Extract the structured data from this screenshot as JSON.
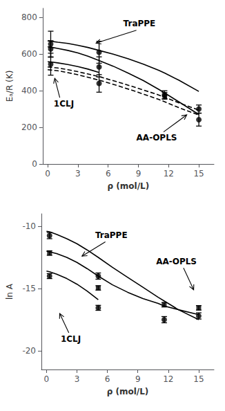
{
  "chart_data": [
    {
      "type": "scatter",
      "xlabel": "ρ (mol/L)",
      "ylabel": "Eₐ/R (K)",
      "xlim": [
        -0.5,
        16.5
      ],
      "ylim": [
        0,
        850
      ],
      "xticks": [
        0,
        3,
        6,
        9,
        12,
        15
      ],
      "yticks": [
        0,
        200,
        400,
        600,
        800
      ],
      "grid": false,
      "series": [
        {
          "type": "line",
          "line_style": "solid",
          "color": "black",
          "x": [
            0.0,
            0.3,
            1.0,
            2.0,
            3.0,
            4.0,
            5.1,
            6.5,
            8.0,
            9.5,
            11.0,
            11.6,
            13.0,
            15.0
          ],
          "values": [
            672,
            670,
            665,
            658,
            648,
            636,
            620,
            600,
            574,
            545,
            512,
            497,
            458,
            396
          ]
        },
        {
          "type": "line",
          "line_style": "solid",
          "color": "black",
          "x": [
            0.0,
            0.3,
            1.0,
            2.0,
            3.0,
            4.0,
            5.1,
            6.5,
            8.0,
            9.5,
            11.0,
            11.6,
            13.0,
            15.0
          ],
          "values": [
            640,
            638,
            631,
            620,
            606,
            588,
            565,
            534,
            496,
            455,
            408,
            388,
            340,
            270
          ]
        },
        {
          "type": "line",
          "line_style": "solid",
          "color": "black",
          "x": [
            0.0,
            0.3,
            1.0,
            2.0,
            3.0,
            4.0,
            5.1
          ],
          "values": [
            558,
            557,
            552,
            543,
            532,
            518,
            500
          ]
        },
        {
          "type": "line",
          "line_style": "dashed",
          "color": "black",
          "x": [
            0.0,
            1.0,
            2.0,
            3.0,
            5.1,
            7.0,
            9.0,
            11.0,
            11.6,
            13.0,
            15.0
          ],
          "values": [
            530,
            524,
            515,
            504,
            477,
            447,
            413,
            377,
            365,
            334,
            294
          ]
        },
        {
          "type": "line",
          "line_style": "dashed",
          "color": "black",
          "x": [
            0.0,
            1.0,
            2.0,
            3.0,
            5.1,
            7.0,
            9.0,
            11.0,
            11.6,
            13.0,
            15.0
          ],
          "values": [
            515,
            509,
            499,
            487,
            458,
            427,
            391,
            353,
            340,
            308,
            267
          ]
        },
        {
          "type": "scatter",
          "marker": "circle",
          "color": "black",
          "x": [
            0.3,
            5.1,
            11.6,
            15.0
          ],
          "values": [
            655,
            610,
            378,
            300
          ],
          "yerr": [
            70,
            60,
            22,
            22
          ]
        },
        {
          "type": "scatter",
          "marker": "circle",
          "color": "black",
          "x": [
            0.3,
            5.1,
            11.6,
            15.0
          ],
          "values": [
            628,
            530,
            372,
            242
          ],
          "yerr": [
            45,
            55,
            18,
            35
          ]
        },
        {
          "type": "scatter",
          "marker": "circle",
          "color": "black",
          "x": [
            0.3,
            5.1
          ],
          "values": [
            545,
            440
          ],
          "yerr": [
            60,
            48
          ]
        }
      ],
      "annotations": [
        {
          "text": "TraPPE",
          "x": 7.5,
          "y": 745,
          "arrow_from": [
            8.8,
            730
          ],
          "arrow_to": [
            4.8,
            660
          ]
        },
        {
          "text": "1CLJ",
          "x": 0.6,
          "y": 350,
          "arrow_from": [
            1.2,
            362
          ],
          "arrow_to": [
            0.7,
            468
          ]
        },
        {
          "text": "AA-OPLS",
          "x": 8.8,
          "y": 168,
          "arrow_from": [
            11.5,
            175
          ],
          "arrow_to": [
            13.8,
            268
          ]
        }
      ]
    },
    {
      "type": "scatter",
      "xlabel": "ρ (mol/L)",
      "ylabel": "ln A",
      "xlim": [
        -0.5,
        16.5
      ],
      "ylim": [
        -21.5,
        -9.0
      ],
      "xticks": [
        0,
        3,
        6,
        9,
        12,
        15
      ],
      "yticks": [
        -20,
        -15,
        -10
      ],
      "grid": false,
      "series": [
        {
          "type": "line",
          "line_style": "solid",
          "color": "black",
          "x": [
            0.0,
            0.3,
            1.0,
            2.0,
            3.0,
            4.0,
            5.1,
            6.5,
            8.0,
            9.5,
            11.0,
            11.6,
            13.0,
            15.0
          ],
          "values": [
            -10.4,
            -10.45,
            -10.65,
            -11.0,
            -11.4,
            -11.9,
            -12.5,
            -13.3,
            -14.1,
            -14.9,
            -15.7,
            -16.0,
            -16.7,
            -17.5
          ]
        },
        {
          "type": "line",
          "line_style": "solid",
          "color": "black",
          "x": [
            0.0,
            0.3,
            1.0,
            2.0,
            3.0,
            4.0,
            5.1,
            6.5,
            8.0,
            9.5,
            11.0,
            11.6,
            13.0,
            15.0
          ],
          "values": [
            -12.0,
            -12.05,
            -12.2,
            -12.5,
            -12.9,
            -13.4,
            -14.0,
            -14.7,
            -15.3,
            -15.8,
            -16.2,
            -16.4,
            -16.7,
            -17.1
          ]
        },
        {
          "type": "line",
          "line_style": "solid",
          "color": "black",
          "x": [
            0.0,
            0.3,
            1.0,
            2.0,
            3.0,
            4.0,
            5.1
          ],
          "values": [
            -13.6,
            -13.65,
            -13.85,
            -14.2,
            -14.65,
            -15.2,
            -15.9
          ]
        },
        {
          "type": "scatter",
          "marker": "circle",
          "color": "black",
          "x": [
            0.3,
            5.1,
            11.6,
            15.0
          ],
          "values": [
            -10.75,
            -14.0,
            -17.5,
            -17.2
          ],
          "yerr": [
            0.25,
            0.25,
            0.25,
            0.25
          ]
        },
        {
          "type": "scatter",
          "marker": "circle",
          "color": "black",
          "x": [
            0.3,
            5.1
          ],
          "values": [
            -14.0,
            -16.55
          ],
          "yerr": [
            0.2,
            0.2
          ]
        },
        {
          "type": "scatter",
          "marker": "square",
          "color": "black",
          "x": [
            0.3,
            5.1,
            11.6,
            15.0
          ],
          "values": [
            -12.15,
            -14.95,
            -16.3,
            -16.55
          ],
          "yerr": [
            0.18,
            0.18,
            0.18,
            0.18
          ]
        }
      ],
      "annotations": [
        {
          "text": "TraPPE",
          "x": 4.8,
          "y": -11.05,
          "arrow_from": [
            5.8,
            -11.25
          ],
          "arrow_to": [
            3.5,
            -12.4
          ]
        },
        {
          "text": "AA-OPLS",
          "x": 10.8,
          "y": -13.15,
          "arrow_from": [
            13.5,
            -13.35
          ],
          "arrow_to": [
            14.5,
            -15.1
          ]
        },
        {
          "text": "1CLJ",
          "x": 1.4,
          "y": -18.7,
          "arrow_from": [
            2.2,
            -18.55
          ],
          "arrow_to": [
            1.3,
            -17.0
          ]
        }
      ]
    }
  ]
}
